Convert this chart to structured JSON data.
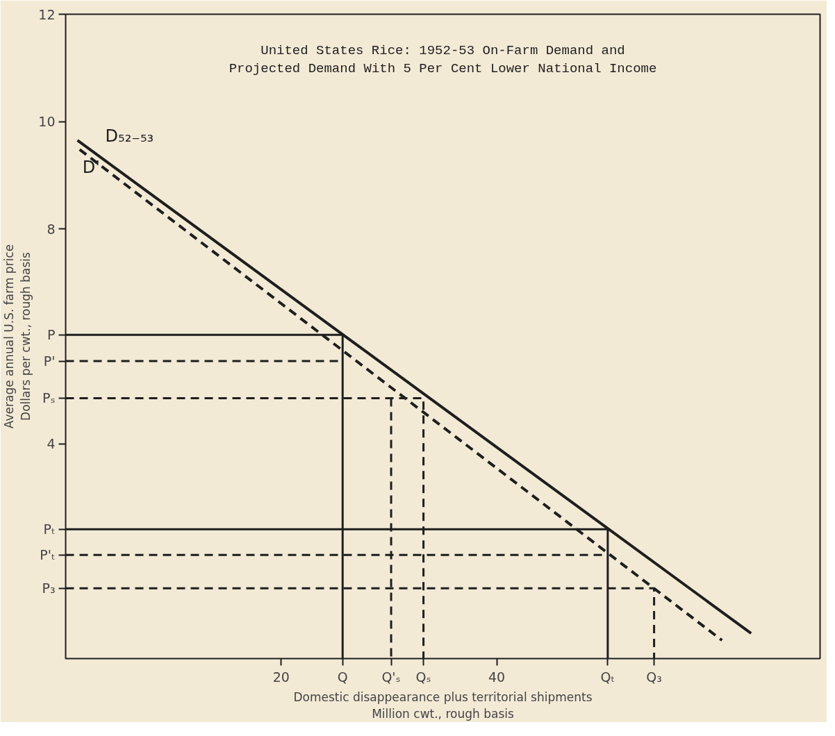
{
  "chart_data": {
    "type": "line",
    "title": "United States Rice: 1952-53 On-Farm Demand and\nProjected Demand With 5 Per Cent Lower National Income",
    "xlabel": "Domestic disappearance plus territorial shipments\nMillion cwt., rough basis",
    "ylabel": "Average annual U.S. farm price\nDollars per cwt., rough basis",
    "xlim": [
      0,
      70
    ],
    "ylim": [
      0,
      12
    ],
    "xticks": [
      20,
      40,
      {
        "value": 25.7,
        "label": "Q"
      },
      {
        "value": 30.2,
        "label": "Q'ₛ"
      },
      {
        "value": 33.2,
        "label": "Qₛ"
      },
      {
        "value": 50.3,
        "label": "Qₜ"
      },
      {
        "value": 54.6,
        "label": "Q₃"
      }
    ],
    "yticks": [
      4,
      8,
      10,
      12,
      {
        "value": 6.03,
        "label": "P"
      },
      {
        "value": 5.54,
        "label": "P'"
      },
      {
        "value": 4.85,
        "label": "Pₛ"
      },
      {
        "value": 2.41,
        "label": "Pₜ"
      },
      {
        "value": 1.93,
        "label": "P'ₜ"
      },
      {
        "value": 1.31,
        "label": "P₃"
      }
    ],
    "grid": false,
    "legend": false,
    "series": [
      {
        "name": "D₅₂₋₅₃",
        "color": "#1e1e1e",
        "line_style": "solid",
        "x": [
          1.1,
          63.6
        ],
        "values": [
          9.65,
          0.47
        ]
      },
      {
        "name": "D'",
        "color": "#1e1e1e",
        "line_style": "dashed",
        "x": [
          1.3,
          60.9
        ],
        "values": [
          9.48,
          0.34
        ]
      },
      {
        "color": "#1e1e1e",
        "line_style": "solid",
        "x": [
          0,
          25.7,
          25.7
        ],
        "values": [
          6.03,
          6.03,
          0
        ]
      },
      {
        "color": "#1e1e1e",
        "line_style": "dashed",
        "x": [
          0,
          25.7
        ],
        "values": [
          5.54,
          5.54
        ]
      },
      {
        "color": "#1e1e1e",
        "line_style": "dashed",
        "x": [
          0,
          33.2,
          33.2
        ],
        "values": [
          4.85,
          4.85,
          0
        ]
      },
      {
        "color": "#1e1e1e",
        "line_style": "dashed",
        "x": [
          30.2,
          30.2
        ],
        "values": [
          4.85,
          0
        ]
      },
      {
        "color": "#1e1e1e",
        "line_style": "solid",
        "x": [
          0,
          50.3,
          50.3
        ],
        "values": [
          2.41,
          2.41,
          0
        ]
      },
      {
        "color": "#1e1e1e",
        "line_style": "dashed",
        "x": [
          0,
          50.3
        ],
        "values": [
          1.93,
          1.93
        ]
      },
      {
        "color": "#1e1e1e",
        "line_style": "dashed",
        "x": [
          0,
          54.6,
          54.6
        ],
        "values": [
          1.31,
          1.31,
          0
        ]
      }
    ]
  }
}
